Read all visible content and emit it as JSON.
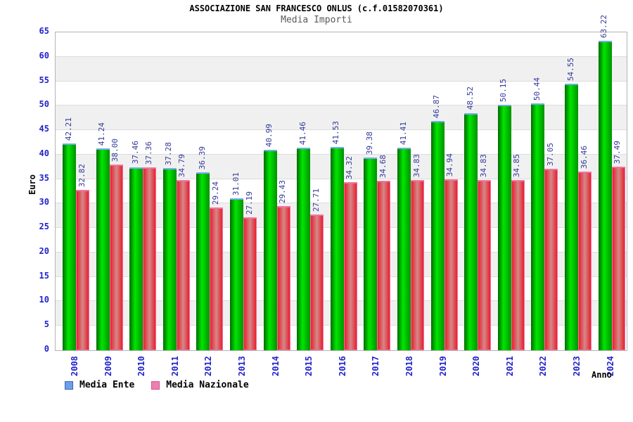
{
  "header": {
    "title": "ASSOCIAZIONE SAN FRANCESCO ONLUS (c.f.01582070361)",
    "subtitle": "Media Importi"
  },
  "axes": {
    "ylabel": "Euro",
    "xlabel": "Anno"
  },
  "legend": {
    "ente_label": "Media Ente",
    "nazionale_label": "Media Nazionale"
  },
  "chart_data": {
    "type": "bar",
    "title": "ASSOCIAZIONE SAN FRANCESCO ONLUS (c.f.01582070361)",
    "subtitle": "Media Importi",
    "xlabel": "Anno",
    "ylabel": "Euro",
    "ylim": [
      0,
      65
    ],
    "ytick_step": 5,
    "grid": "horizontal-bands-alternating",
    "legend_position": "bottom-left",
    "categories": [
      "2008",
      "2009",
      "2010",
      "2011",
      "2012",
      "2013",
      "2014",
      "2015",
      "2016",
      "2017",
      "2018",
      "2019",
      "2020",
      "2021",
      "2022",
      "2023",
      "2024"
    ],
    "series": [
      {
        "name": "Media Ente",
        "values": [
          42.21,
          41.24,
          37.46,
          37.28,
          36.39,
          31.01,
          40.99,
          41.46,
          41.53,
          39.38,
          41.41,
          46.87,
          48.52,
          50.15,
          50.44,
          54.55,
          63.22
        ]
      },
      {
        "name": "Media Nazionale",
        "values": [
          32.82,
          38.0,
          37.36,
          34.79,
          29.24,
          27.19,
          29.43,
          27.71,
          34.32,
          34.68,
          34.83,
          34.94,
          34.83,
          34.85,
          37.05,
          36.46,
          37.49
        ]
      }
    ],
    "colors": {
      "ente_fill_bright": "#00e600",
      "ente_fill_dark": "#006a00",
      "ente_fill_mid_dark": "#009100",
      "ente_cap": "#74a9ec",
      "nazionale_fill_edge": "#e8202e",
      "nazionale_fill_pale": "#d48888",
      "nazionale_cap": "#f272a2",
      "axis_text": "#2222cc",
      "value_text": "#333a99",
      "band_gray": "#f0f0f0",
      "legend_ente_fill": "#6d9eea",
      "legend_ente_border": "#3a64b4",
      "legend_nazionale_fill": "#ef7fb0",
      "legend_nazionale_border": "#d0588c"
    }
  }
}
